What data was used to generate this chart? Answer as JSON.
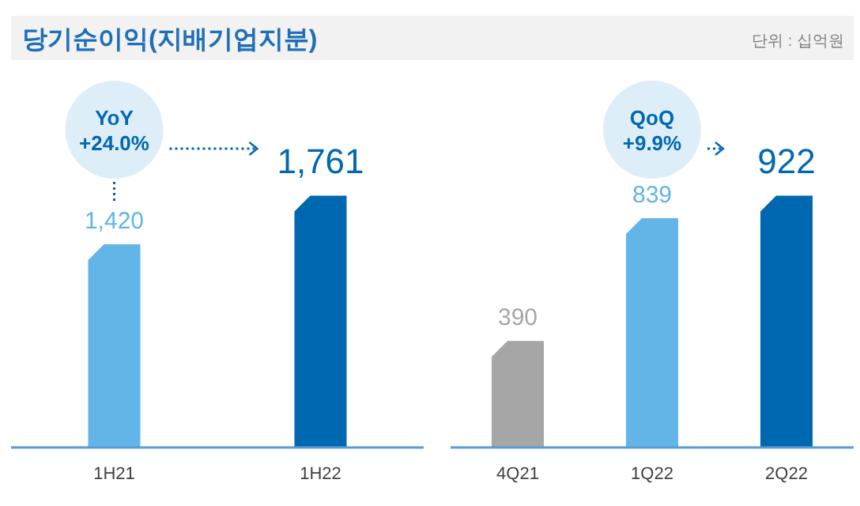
{
  "chart_data": [
    {
      "type": "bar",
      "title": "당기순이익(지배기업지분)",
      "categories": [
        "1H21",
        "1H22"
      ],
      "values": [
        1420,
        1761
      ],
      "colors": [
        "#61b5e7",
        "#0067b1"
      ],
      "value_labels": [
        "1,420",
        "1,761"
      ],
      "annotations": [
        "YoY\n+24.0%"
      ]
    },
    {
      "type": "bar",
      "subtitle": "단위 : 십억원",
      "categories": [
        "4Q21",
        "1Q22",
        "2Q22"
      ],
      "values": [
        390,
        839,
        922
      ],
      "colors": [
        "#a6a6a6",
        "#61b5e7",
        "#0067b1"
      ],
      "value_labels": [
        "390",
        "839",
        "922"
      ],
      "annotations": [
        "QoQ\n+9.9%"
      ]
    }
  ]
}
